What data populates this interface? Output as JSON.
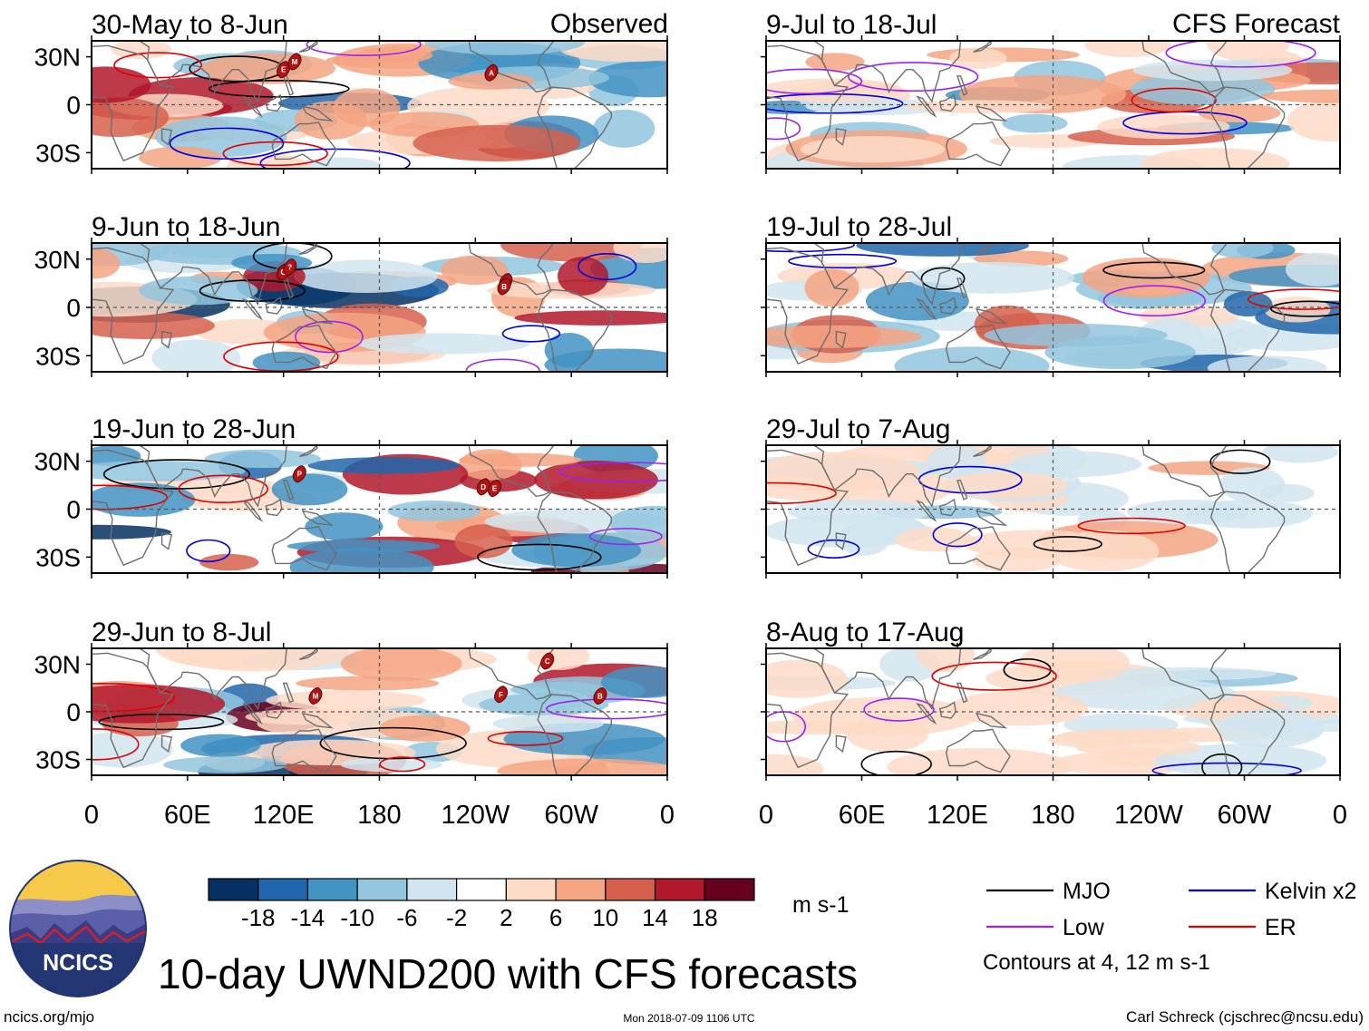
{
  "chart_data": {
    "type": "heatmap",
    "title": "10-day UWND200 with CFS forecasts",
    "variable": "200-hPa zonal wind anomaly",
    "units": "m s-1",
    "x_ticks": [
      "0",
      "60E",
      "120E",
      "180",
      "120W",
      "60W",
      "0"
    ],
    "y_ticks": [
      "30N",
      "0",
      "30S"
    ],
    "lon_range": [
      0,
      360
    ],
    "lat_range": [
      -40,
      40
    ],
    "column_labels": {
      "observed": "Observed",
      "forecast": "CFS Forecast"
    },
    "panels": [
      {
        "period": "30-May to 8-Jun",
        "source": "Observed",
        "storms": [
          {
            "label": "E",
            "lon": 120,
            "lat": 22
          },
          {
            "label": "M",
            "lon": 127,
            "lat": 27
          },
          {
            "label": "A",
            "lon": 250,
            "lat": 20
          }
        ]
      },
      {
        "period": "9-Jun to 18-Jun",
        "source": "Observed",
        "storms": [
          {
            "label": "G",
            "lon": 120,
            "lat": 22
          },
          {
            "label": "?",
            "lon": 124,
            "lat": 25
          },
          {
            "label": "C",
            "lon": 259,
            "lat": 16
          },
          {
            "label": "B",
            "lon": 258,
            "lat": 13
          }
        ]
      },
      {
        "period": "19-Jun to 28-Jun",
        "source": "Observed",
        "storms": [
          {
            "label": "P",
            "lon": 130,
            "lat": 22
          },
          {
            "label": "D",
            "lon": 245,
            "lat": 14
          },
          {
            "label": "E",
            "lon": 252,
            "lat": 13
          }
        ]
      },
      {
        "period": "29-Jun to 8-Jul",
        "source": "Observed",
        "storms": [
          {
            "label": "C",
            "lon": 285,
            "lat": 32
          },
          {
            "label": "M",
            "lon": 140,
            "lat": 10
          },
          {
            "label": "F",
            "lon": 256,
            "lat": 11
          },
          {
            "label": "B",
            "lon": 318,
            "lat": 10
          }
        ]
      },
      {
        "period": "9-Jul to 18-Jul",
        "source": "CFS Forecast",
        "storms": []
      },
      {
        "period": "19-Jul to 28-Jul",
        "source": "CFS Forecast",
        "storms": []
      },
      {
        "period": "29-Jul to 7-Aug",
        "source": "CFS Forecast",
        "storms": []
      },
      {
        "period": "8-Aug to 17-Aug",
        "source": "CFS Forecast",
        "storms": []
      }
    ],
    "colorbar": {
      "labels": [
        "-18",
        "-14",
        "-10",
        "-6",
        "-2",
        "2",
        "6",
        "10",
        "14",
        "18"
      ],
      "colors": [
        "#053061",
        "#2166ac",
        "#4393c3",
        "#92c5de",
        "#d1e5f0",
        "#ffffff",
        "#fddbc7",
        "#f4a582",
        "#d6604d",
        "#b2182b",
        "#67001f"
      ],
      "units": "m s-1"
    },
    "legend": [
      {
        "name": "MJO",
        "color": "#000000"
      },
      {
        "name": "Kelvin x2",
        "color": "#0000dd"
      },
      {
        "name": "Low",
        "color": "#a020f0"
      },
      {
        "name": "ER",
        "color": "#e00000"
      }
    ],
    "contour_note": "Contours at 4, 12 m s-1"
  },
  "footer": {
    "left": "ncics.org/mjo",
    "center": "Mon 2018-07-09 1106 UTC",
    "right": "Carl Schreck (cjschrec@ncsu.edu)"
  },
  "logo": {
    "text": "NCICS"
  }
}
